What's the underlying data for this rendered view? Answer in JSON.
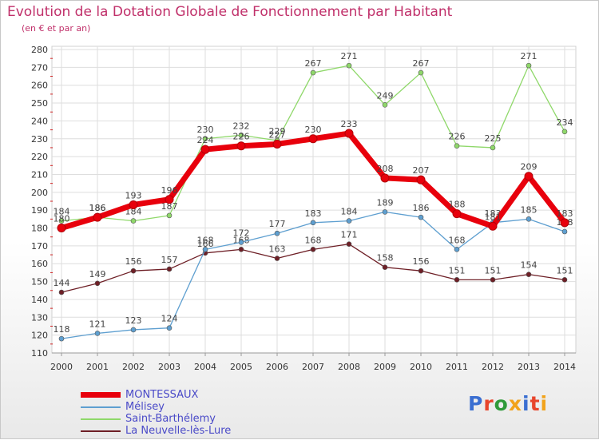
{
  "page": {
    "title": "Evolution de la Dotation Globale de Fonctionnement par Habitant",
    "subtitle": "(en € et par an)"
  },
  "logo": {
    "text": "Proxiti",
    "colors": [
      "#3b6fd1",
      "#e8452c",
      "#2f9a3a",
      "#f2a31b",
      "#3b6fd1",
      "#e8452c",
      "#f2a31b"
    ]
  },
  "chart_data": {
    "type": "line",
    "x": [
      "2000",
      "2001",
      "2002",
      "2003",
      "2004",
      "2005",
      "2006",
      "2007",
      "2008",
      "2009",
      "2010",
      "2011",
      "2012",
      "2013",
      "2014"
    ],
    "ylim": [
      110,
      280
    ],
    "yticks": [
      110,
      120,
      130,
      140,
      150,
      160,
      170,
      180,
      190,
      200,
      210,
      220,
      230,
      240,
      250,
      260,
      270,
      280
    ],
    "grid": true,
    "legend_position": "bottom",
    "series": [
      {
        "name": "MONTESSAUX",
        "color": "#e8000c",
        "values": [
          180,
          186,
          193,
          196,
          224,
          226,
          227,
          230,
          233,
          208,
          207,
          188,
          181,
          209,
          183
        ]
      },
      {
        "name": "Mélisey",
        "color": "#5e9fd0",
        "values": [
          118,
          121,
          123,
          124,
          168,
          172,
          177,
          183,
          184,
          189,
          186,
          168,
          183,
          185,
          178
        ]
      },
      {
        "name": "Saint-Barthélemy",
        "color": "#8fd86a",
        "values": [
          184,
          186,
          184,
          187,
          230,
          232,
          229,
          267,
          271,
          249,
          267,
          226,
          225,
          271,
          234
        ]
      },
      {
        "name": "La Neuvelle-lès-Lure",
        "color": "#6e1f26",
        "values": [
          144,
          149,
          156,
          157,
          166,
          168,
          163,
          168,
          171,
          158,
          156,
          151,
          151,
          154,
          151
        ]
      }
    ]
  }
}
